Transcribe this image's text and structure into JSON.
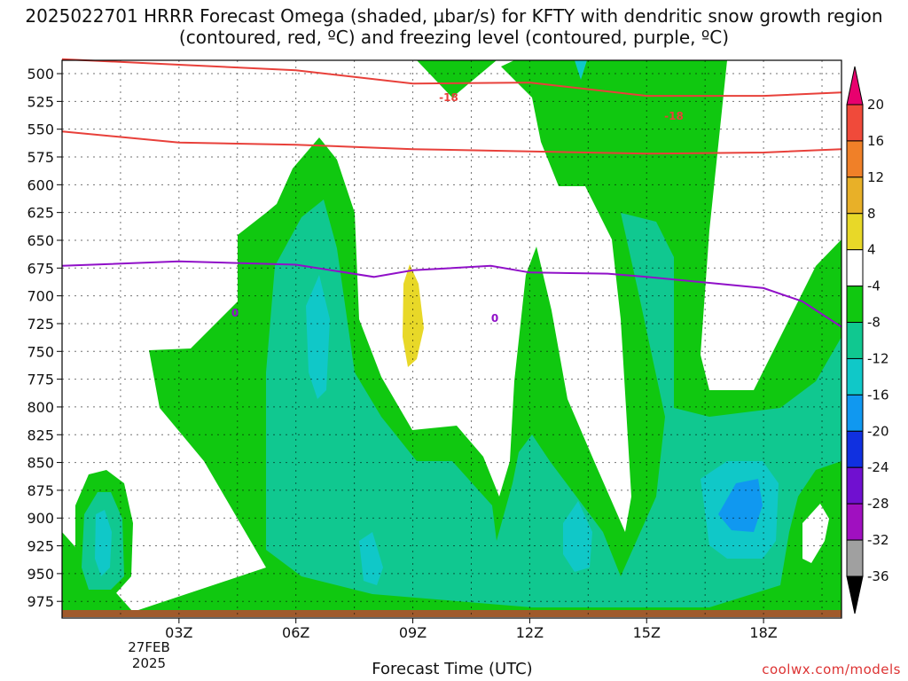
{
  "chart_data": {
    "type": "heatmap",
    "title": "2025022701 HRRR Forecast Omega (shaded, μbar/s) for KFTY with dendritic snow growth region (contoured, red, ºC) and freezing level (contoured, purple, ºC)",
    "xlabel": "Forecast Time (UTC)",
    "x_ticks": [
      "03Z",
      "06Z",
      "09Z",
      "12Z",
      "15Z",
      "18Z"
    ],
    "x_date_lines": [
      "27FEB",
      "2025"
    ],
    "y_ticks": [
      500,
      525,
      550,
      575,
      600,
      625,
      650,
      675,
      700,
      725,
      750,
      775,
      800,
      825,
      850,
      875,
      900,
      925,
      950,
      975
    ],
    "colorbar": {
      "levels": [
        20,
        16,
        12,
        8,
        4,
        -4,
        -8,
        -12,
        -16,
        -20,
        -24,
        -28,
        -32,
        -36
      ],
      "colors": [
        "#e8006e",
        "#f04a3a",
        "#f08028",
        "#e8b028",
        "#e8d828",
        "#ffffff",
        "#10c810",
        "#10c890",
        "#10c8c8",
        "#1098f0",
        "#1030e0",
        "#7010d0",
        "#a010c0",
        "#a0a0a0",
        "#000000"
      ]
    },
    "series": [
      {
        "name": "-18",
        "color": "#e8403a",
        "x": [
          0,
          3,
          6,
          9,
          12,
          15,
          18,
          20
        ],
        "y": [
          487,
          492,
          497,
          509,
          508,
          520,
          520,
          517
        ]
      },
      {
        "name": "-18",
        "color": "#e8403a",
        "x": [
          0,
          3,
          6,
          9,
          12,
          15,
          18,
          20
        ],
        "y": [
          552,
          562,
          564,
          568,
          570,
          572,
          571,
          568
        ]
      },
      {
        "name": "0",
        "color": "#9010c8",
        "x": [
          0,
          3,
          6,
          8,
          9,
          11,
          12,
          14,
          15,
          18,
          19,
          20
        ],
        "y": [
          673,
          669,
          672,
          683,
          677,
          673,
          679,
          680,
          683,
          693,
          705,
          728
        ]
      }
    ],
    "credit": "coolwx.com/models"
  }
}
